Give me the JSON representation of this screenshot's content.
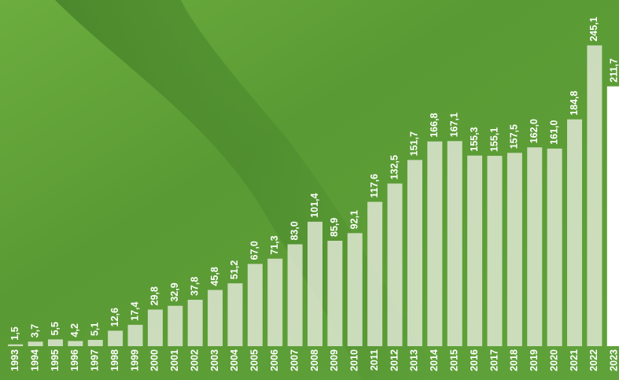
{
  "chart_data": {
    "type": "bar",
    "categories": [
      "1993",
      "1994",
      "1995",
      "1996",
      "1997",
      "1998",
      "1999",
      "2000",
      "2001",
      "2002",
      "2003",
      "2004",
      "2005",
      "2006",
      "2007",
      "2008",
      "2009",
      "2010",
      "2011",
      "2012",
      "2013",
      "2014",
      "2015",
      "2016",
      "2017",
      "2018",
      "2019",
      "2020",
      "2021",
      "2022",
      "2023"
    ],
    "values": [
      1.5,
      3.7,
      5.5,
      4.2,
      5.1,
      12.6,
      17.4,
      29.8,
      32.9,
      37.8,
      45.8,
      51.2,
      67.0,
      71.3,
      83.0,
      101.4,
      85.9,
      92.1,
      117.6,
      132.5,
      151.7,
      166.8,
      167.1,
      155.3,
      155.1,
      157.5,
      162.0,
      161.0,
      184.8,
      245.1,
      211.7
    ],
    "value_labels": [
      "1,5",
      "3,7",
      "5,5",
      "4,2",
      "5,1",
      "12,6",
      "17,4",
      "29,8",
      "32,9",
      "37,8",
      "45,8",
      "51,2",
      "67,0",
      "71,3",
      "83,0",
      "101,4",
      "85,9",
      "92,1",
      "117,6",
      "132,5",
      "151,7",
      "166,8",
      "167,1",
      "155,3",
      "155,1",
      "157,5",
      "162,0",
      "161,0",
      "184,8",
      "245,1",
      "211,7"
    ],
    "colors": [
      "#dfe8d3",
      "#dfe8d3",
      "#dfe8d3",
      "#dfe8d3",
      "#dfe8d3",
      "#dfe8d3",
      "#dfe8d3",
      "#dfe8d3",
      "#dfe8d3",
      "#dfe8d3",
      "#dfe8d3",
      "#dfe8d3",
      "#dfe8d3",
      "#dfe8d3",
      "#dfe8d3",
      "#dfe8d3",
      "#dfe8d3",
      "#dfe8d3",
      "#dfe8d3",
      "#dfe8d3",
      "#dfe8d3",
      "#dfe8d3",
      "#dfe8d3",
      "#dfe8d3",
      "#dfe8d3",
      "#dfe8d3",
      "#dfe8d3",
      "#dfe8d3",
      "#dfe8d3",
      "#dfe8d3",
      "#ffffff"
    ],
    "ylim": [
      0,
      250
    ]
  }
}
